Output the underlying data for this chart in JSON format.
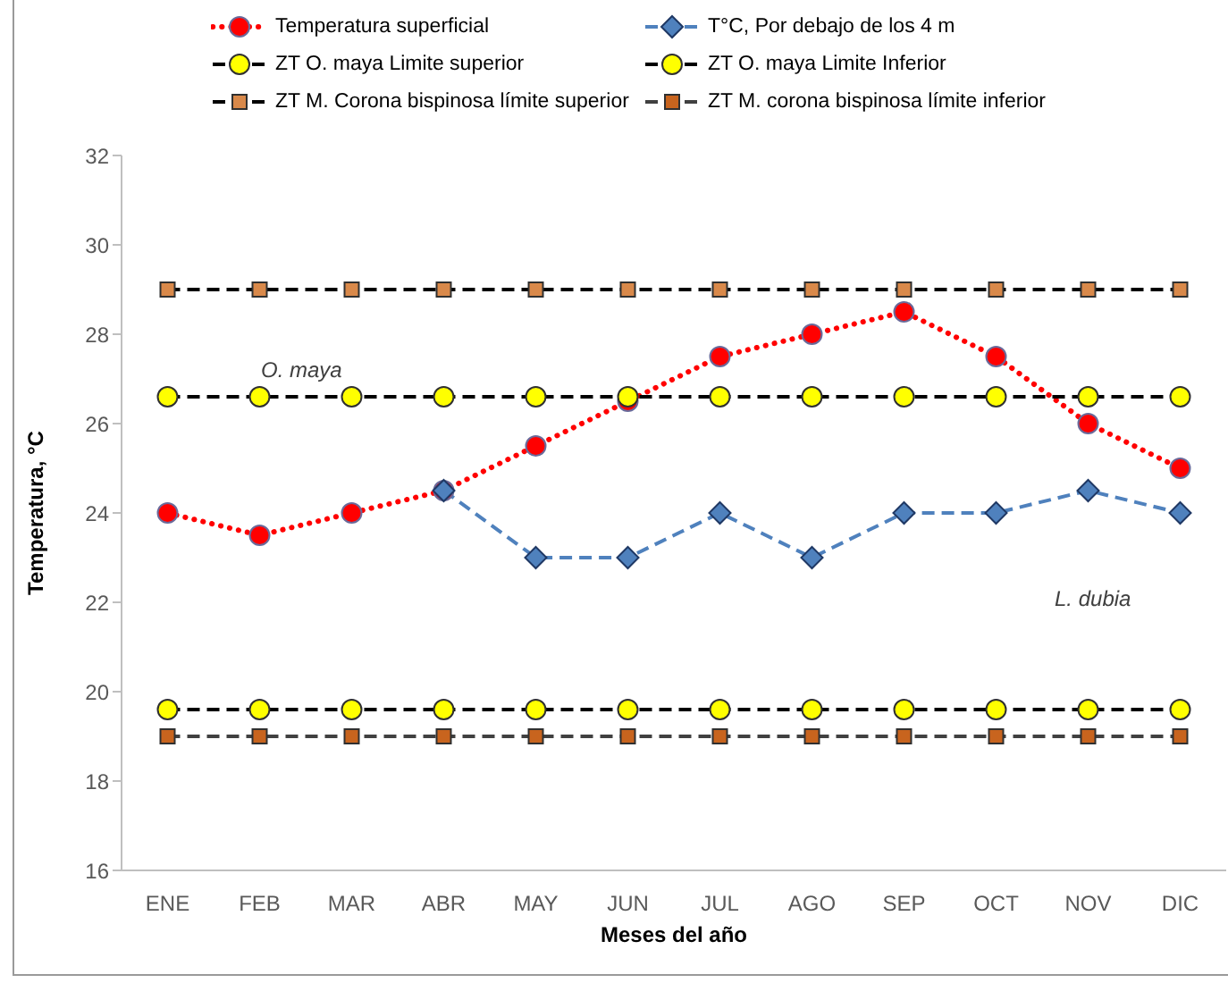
{
  "chart_data": {
    "type": "line",
    "xlabel": "Meses del año",
    "ylabel": "Temperatura, °C",
    "categories": [
      "ENE",
      "FEB",
      "MAR",
      "ABR",
      "MAY",
      "JUN",
      "JUL",
      "AGO",
      "SEP",
      "OCT",
      "NOV",
      "DIC"
    ],
    "ylim": [
      16,
      32
    ],
    "yticks": [
      16,
      18,
      20,
      22,
      24,
      26,
      28,
      30,
      32
    ],
    "grid": false,
    "legend": "top",
    "series": [
      {
        "name": "Temperatura superficial",
        "color": "#ff0000",
        "marker": "circle",
        "line_style": "dotted",
        "values": [
          24,
          23.5,
          24,
          24.5,
          25.5,
          26.5,
          27.5,
          28,
          28.5,
          27.5,
          26,
          25
        ]
      },
      {
        "name": "T°C, Por debajo de los 4 m",
        "color": "#4f81bd",
        "marker": "diamond",
        "line_style": "dashed",
        "values": [
          null,
          null,
          null,
          24.5,
          23,
          23,
          24,
          23,
          24,
          24,
          24.5,
          24
        ]
      },
      {
        "name": "ZT O. maya Limite superior",
        "color": "#000000",
        "colors": [
          "#ffff00",
          "#ffff00",
          "#ffff00",
          "#ffff00",
          "#ffff00",
          "#ffff00",
          "#ffff00",
          "#ffff00",
          "#ffff00",
          "#ffff00",
          "#ffff00",
          "#ffff00"
        ],
        "marker": "circle",
        "line_style": "dashed",
        "values": [
          26.6,
          26.6,
          26.6,
          26.6,
          26.6,
          26.6,
          26.6,
          26.6,
          26.6,
          26.6,
          26.6,
          26.6
        ]
      },
      {
        "name": "ZT O. maya Limite Inferior",
        "color": "#000000",
        "colors": [
          "#ffff00",
          "#ffff00",
          "#ffff00",
          "#ffff00",
          "#ffff00",
          "#ffff00",
          "#ffff00",
          "#ffff00",
          "#ffff00",
          "#ffff00",
          "#ffff00",
          "#ffff00"
        ],
        "marker": "circle",
        "line_style": "dashed",
        "values": [
          19.6,
          19.6,
          19.6,
          19.6,
          19.6,
          19.6,
          19.6,
          19.6,
          19.6,
          19.6,
          19.6,
          19.6
        ]
      },
      {
        "name": "ZT M. Corona bispinosa límite superior",
        "color": "#000000",
        "colors": [
          "#d9894a",
          "#d9894a",
          "#d9894a",
          "#d9894a",
          "#d9894a",
          "#d9894a",
          "#d9894a",
          "#d9894a",
          "#d9894a",
          "#d9894a",
          "#d9894a",
          "#d9894a"
        ],
        "marker": "square",
        "line_style": "dashed",
        "values": [
          29,
          29,
          29,
          29,
          29,
          29,
          29,
          29,
          29,
          29,
          29,
          29
        ]
      },
      {
        "name": "ZT M. corona bispinosa límite inferior",
        "color": "#404040",
        "colors": [
          "#c8641e",
          "#c8641e",
          "#c8641e",
          "#c8641e",
          "#c8641e",
          "#c8641e",
          "#c8641e",
          "#c8641e",
          "#c8641e",
          "#c8641e",
          "#c8641e",
          "#c8641e"
        ],
        "marker": "square",
        "line_style": "dashed",
        "values": [
          19,
          19,
          19,
          19,
          19,
          19,
          19,
          19,
          19,
          19,
          19,
          19
        ]
      }
    ],
    "annotations": [
      "O. maya",
      "L. dubia"
    ]
  }
}
